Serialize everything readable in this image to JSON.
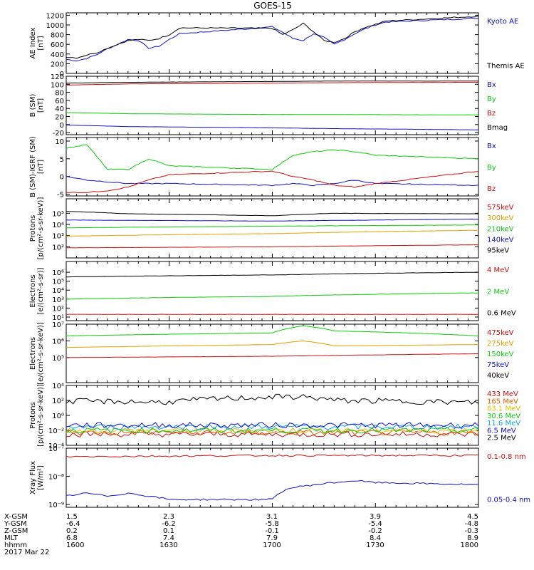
{
  "title": "GOES-15",
  "panels": [
    {
      "ylabel": [
        "AE Index",
        "[nT]"
      ],
      "scale": "linear",
      "ylim": [
        0,
        1250
      ],
      "ticks": [
        "0",
        "200",
        "400",
        "600",
        "800",
        "1000",
        "1200"
      ],
      "tick_values": [
        0,
        200,
        400,
        600,
        800,
        1000,
        1200
      ],
      "legend": [
        {
          "label": "Kyoto AE",
          "color": "#1010c8"
        },
        {
          "label": "Themis AE",
          "color": "#000000"
        }
      ]
    },
    {
      "ylabel": [
        "B (SM)",
        "[nT]"
      ],
      "scale": "linear",
      "ylim": [
        -25,
        120
      ],
      "ticks": [
        "-20",
        "0",
        "20",
        "40",
        "60",
        "80",
        "100",
        "120"
      ],
      "tick_values": [
        -20,
        0,
        20,
        40,
        60,
        80,
        100,
        120
      ],
      "legend": [
        {
          "label": "Bx",
          "color": "#1010c8"
        },
        {
          "label": "By",
          "color": "#10c810"
        },
        {
          "label": "Bz",
          "color": "#c81010"
        },
        {
          "label": "Bmag",
          "color": "#000000"
        }
      ]
    },
    {
      "ylabel": [
        "B (SM)-IGRF (SM)",
        "[nT]"
      ],
      "scale": "linear",
      "ylim": [
        -5.5,
        11
      ],
      "ticks": [
        "-5",
        "0",
        "5",
        "10"
      ],
      "tick_values": [
        -5,
        0,
        5,
        10
      ],
      "legend": [
        {
          "label": "Bx",
          "color": "#1010c8"
        },
        {
          "label": "By",
          "color": "#10c810"
        },
        {
          "label": "Bz",
          "color": "#c81010"
        }
      ]
    },
    {
      "ylabel": [
        "Protons",
        "[p/(cm²-s-sr-keV)]"
      ],
      "scale": "log",
      "ylim": [
        1,
        6.3
      ],
      "ticks": [
        "10²",
        "10³",
        "10⁴",
        "10⁵"
      ],
      "tick_values": [
        2,
        3,
        4,
        5
      ],
      "legend": [
        {
          "label": "575keV",
          "color": "#c81010"
        },
        {
          "label": "300keV",
          "color": "#e0a000"
        },
        {
          "label": "210keV",
          "color": "#10c810"
        },
        {
          "label": "140keV",
          "color": "#1010c8"
        },
        {
          "label": "95keV",
          "color": "#000000"
        }
      ]
    },
    {
      "ylabel": [
        "Electrons",
        "[e/(cm²-s-sr)]"
      ],
      "scale": "log",
      "ylim": [
        0.6,
        7.2
      ],
      "ticks": [
        "10¹",
        "10²",
        "10³",
        "10⁴",
        "10⁵",
        "10⁶"
      ],
      "tick_values": [
        1,
        2,
        3,
        4,
        5,
        6
      ],
      "legend": [
        {
          "label": "4 MeV",
          "color": "#c81010"
        },
        {
          "label": "2 MeV",
          "color": "#10c810"
        },
        {
          "label": "0.6 MeV",
          "color": "#000000"
        }
      ]
    },
    {
      "ylabel": [
        "Electrons",
        "[e/(cm²-s-sr-keV)]"
      ],
      "scale": "log",
      "ylim": [
        3.5,
        7
      ],
      "ticks": [
        "10⁵",
        "10⁶",
        "10⁷"
      ],
      "tick_values": [
        5,
        6,
        7
      ],
      "legend": [
        {
          "label": "475keV",
          "color": "#c81010"
        },
        {
          "label": "275keV",
          "color": "#e0a000"
        },
        {
          "label": "150keV",
          "color": "#10c810"
        },
        {
          "label": "75keV",
          "color": "#1010c8"
        },
        {
          "label": "40keV",
          "color": "#000000"
        }
      ]
    },
    {
      "ylabel": [
        "Protons",
        "[p/(cm²-s-sr-keV)]"
      ],
      "scale": "log",
      "ylim": [
        -4,
        4
      ],
      "ticks": [
        "10⁻⁴",
        "10⁻²",
        "10⁰",
        "10²",
        "10⁴"
      ],
      "tick_values": [
        -4,
        -2,
        0,
        2,
        4
      ],
      "legend": [
        {
          "label": "433 MeV",
          "color": "#c81010"
        },
        {
          "label": "165 MeV",
          "color": "#e06000"
        },
        {
          "label": "63.1 MeV",
          "color": "#e0c000"
        },
        {
          "label": "30.6 MeV",
          "color": "#10c810"
        },
        {
          "label": "11.6 MeV",
          "color": "#10a0e0"
        },
        {
          "label": "6.5 MeV",
          "color": "#1010c8"
        },
        {
          "label": "2.5 MeV",
          "color": "#000000"
        }
      ]
    },
    {
      "ylabel": [
        "Xray Flux",
        "[W/m²]"
      ],
      "scale": "log",
      "ylim": [
        -9.1,
        -7
      ],
      "ticks": [
        "10⁻⁹",
        "10⁻⁸",
        "10⁻⁷"
      ],
      "tick_values": [
        -9,
        -8,
        -7
      ],
      "legend": [
        {
          "label": "0.1-0.8 nm",
          "color": "#c81010"
        },
        {
          "label": "0.05-0.4 nm",
          "color": "#1010c8"
        }
      ]
    }
  ],
  "chart_data": {
    "type": "line",
    "title": "GOES-15",
    "x": {
      "label": "hhmm",
      "range": [
        1600,
        1800
      ],
      "ticks": [
        1600,
        1630,
        1700,
        1730,
        1800
      ]
    },
    "panels": [
      {
        "ylabel": "AE Index [nT]",
        "series": [
          {
            "name": "Kyoto AE",
            "x": [
              1600,
              1605,
              1610,
              1615,
              1620,
              1625,
              1630,
              1635,
              1640,
              1645,
              1650,
              1655,
              1700,
              1705,
              1710,
              1715,
              1720,
              1725,
              1730,
              1735,
              1740,
              1745,
              1750,
              1755,
              1800
            ],
            "values": [
              290,
              260,
              310,
              390,
              510,
              600,
              700,
              680,
              520,
              560,
              700,
              820,
              960,
              850,
              720,
              680,
              820,
              740,
              600,
              700,
              820,
              920,
              1000,
              1060,
              1140
            ]
          },
          {
            "name": "Themis AE",
            "x": [
              1600,
              1605,
              1610,
              1615,
              1620,
              1625,
              1630,
              1635,
              1640,
              1645,
              1650,
              1655,
              1700,
              1705,
              1710,
              1715,
              1720,
              1725,
              1730,
              1735,
              1740,
              1745,
              1750,
              1755,
              1800
            ],
            "values": [
              340,
              320,
              380,
              430,
              520,
              600,
              680,
              700,
              680,
              720,
              800,
              940,
              930,
              800,
              900,
              1030,
              860,
              680,
              640,
              720,
              860,
              950,
              1010,
              1080,
              1180
            ]
          }
        ]
      },
      {
        "ylabel": "B (SM) [nT]",
        "series": [
          {
            "name": "Bx",
            "x": [
              1600,
              1630,
              1700,
              1730,
              1800
            ],
            "values": [
              -1,
              -5,
              -8,
              -10,
              -13
            ]
          },
          {
            "name": "By",
            "x": [
              1600,
              1630,
              1700,
              1730,
              1800
            ],
            "values": [
              30,
              27,
              25,
              25,
              24
            ]
          },
          {
            "name": "Bz",
            "x": [
              1600,
              1630,
              1700,
              1730,
              1800
            ],
            "values": [
              98,
              101,
              103,
              104,
              105
            ]
          },
          {
            "name": "Bmag",
            "x": [
              1600,
              1630,
              1700,
              1730,
              1800
            ],
            "values": [
              103,
              105,
              107,
              108,
              108
            ]
          }
        ]
      },
      {
        "ylabel": "B (SM)-IGRF (SM) [nT]",
        "series": [
          {
            "name": "Bx",
            "x": [
              1600,
              1610,
              1620,
              1630,
              1640,
              1650,
              1700,
              1710,
              1720,
              1730,
              1740,
              1750,
              1800
            ],
            "values": [
              0,
              -1,
              -1.5,
              -2,
              -2,
              -2,
              -2.5,
              -2,
              -2.5,
              -2,
              -1,
              -2,
              -2.5
            ]
          },
          {
            "name": "By",
            "x": [
              1600,
              1610,
              1620,
              1630,
              1640,
              1650,
              1700,
              1710,
              1720,
              1730,
              1740,
              1750,
              1800
            ],
            "values": [
              8,
              9,
              2,
              2,
              5,
              3,
              2,
              6,
              7,
              7.5,
              7,
              6,
              5
            ]
          },
          {
            "name": "Bz",
            "x": [
              1600,
              1610,
              1620,
              1630,
              1640,
              1650,
              1700,
              1710,
              1720,
              1730,
              1740,
              1750,
              1800
            ],
            "values": [
              -4.5,
              -4.5,
              -4,
              -3,
              -1,
              0.5,
              1.5,
              0,
              -1,
              -2.5,
              -3,
              -2,
              1.5
            ]
          }
        ]
      },
      {
        "ylabel": "Protons [p/(cm2-s-sr-keV)]",
        "series": [
          {
            "name": "575keV",
            "x": [
              1600,
              1700,
              1800
            ],
            "values": [
              80,
              100,
              150
            ]
          },
          {
            "name": "300keV",
            "x": [
              1600,
              1700,
              1800
            ],
            "values": [
              900,
              1500,
              3000
            ]
          },
          {
            "name": "210keV",
            "x": [
              1600,
              1700,
              1800
            ],
            "values": [
              5000,
              7000,
              9000
            ]
          },
          {
            "name": "140keV",
            "x": [
              1600,
              1700,
              1800
            ],
            "values": [
              25000,
              20000,
              30000
            ]
          },
          {
            "name": "95keV",
            "x": [
              1600,
              1630,
              1700,
              1730,
              1800
            ],
            "values": [
              150000,
              90000,
              60000,
              100000,
              90000
            ]
          }
        ]
      },
      {
        "ylabel": "Electrons [e/(cm2-s-sr)]",
        "series": [
          {
            "name": "4 MeV",
            "x": [
              1600,
              1700,
              1800
            ],
            "values": [
              20,
              20,
              20
            ]
          },
          {
            "name": "2 MeV",
            "x": [
              1600,
              1700,
              1800
            ],
            "values": [
              1000,
              2000,
              5000
            ]
          },
          {
            "name": "0.6 MeV",
            "x": [
              1600,
              1700,
              1800
            ],
            "values": [
              300000,
              500000,
              1000000
            ]
          }
        ]
      },
      {
        "ylabel": "Electrons [e/(cm2-s-sr-keV)]",
        "series": [
          {
            "name": "475keV",
            "x": [
              1600,
              1700,
              1800
            ],
            "values": [
              100000,
              120000,
              170000
            ]
          },
          {
            "name": "275keV",
            "x": [
              1600,
              1700,
              1715,
              1730,
              1800
            ],
            "values": [
              400000,
              600000,
              1000000,
              500000,
              600000
            ]
          },
          {
            "name": "150keV",
            "x": [
              1600,
              1700,
              1715,
              1730,
              1800
            ],
            "values": [
              2000000,
              3000000,
              8000000,
              4000000,
              2000000
            ]
          }
        ]
      },
      {
        "ylabel": "Protons [p/(cm2-s-sr-keV)]",
        "series": [
          {
            "name": "433 MeV",
            "x": [
              1600,
              1700,
              1800
            ],
            "values": [
              0.003,
              0.003,
              0.003
            ]
          },
          {
            "name": "165 MeV",
            "x": [
              1600,
              1700,
              1800
            ],
            "values": [
              0.005,
              0.005,
              0.005
            ]
          },
          {
            "name": "63.1 MeV",
            "x": [
              1600,
              1700,
              1800
            ],
            "values": [
              0.01,
              0.01,
              0.01
            ]
          },
          {
            "name": "30.6 MeV",
            "x": [
              1600,
              1700,
              1800
            ],
            "values": [
              0.01,
              0.01,
              0.01
            ]
          },
          {
            "name": "11.6 MeV",
            "x": [
              1600,
              1700,
              1800
            ],
            "values": [
              0.03,
              0.03,
              0.03
            ]
          },
          {
            "name": "6.5 MeV",
            "x": [
              1600,
              1700,
              1800
            ],
            "values": [
              0.05,
              0.05,
              0.05
            ]
          },
          {
            "name": "2.5 MeV",
            "x": [
              1600,
              1650,
              1705,
              1715,
              1730,
              1800
            ],
            "values": [
              80,
              60,
              300,
              300,
              100,
              50
            ]
          }
        ]
      },
      {
        "ylabel": "Xray Flux [W/m2]",
        "series": [
          {
            "name": "0.1-0.8 nm",
            "x": [
              1600,
              1700,
              1800
            ],
            "values": [
              5e-08,
              5.5e-08,
              5.5e-08
            ]
          },
          {
            "name": "0.05-0.4 nm",
            "x": [
              1600,
              1610,
              1620,
              1630,
              1640,
              1650,
              1700,
              1705,
              1710,
              1720,
              1730,
              1740,
              1750,
              1800
            ],
            "values": [
              2e-09,
              2.5e-09,
              2e-09,
              2.5e-09,
              2e-09,
              1.5e-09,
              1.5e-09,
              3e-09,
              4e-09,
              5e-09,
              6e-09,
              7e-09,
              6e-09,
              5e-09
            ]
          }
        ]
      }
    ]
  },
  "footer": {
    "row_labels": [
      "X-GSM",
      "Y-GSM",
      "Z-GSM",
      "MLT",
      "hhmm"
    ],
    "columns": [
      [
        "1.5",
        "-6.4",
        "0.2",
        "6.8",
        "1600"
      ],
      [
        "2.3",
        "-6.2",
        "0.1",
        "7.4",
        "1630"
      ],
      [
        "3.1",
        "-5.8",
        "-0.1",
        "7.9",
        "1700"
      ],
      [
        "3.9",
        "-5.4",
        "-0.2",
        "8.4",
        "1730"
      ],
      [
        "4.5",
        "-4.8",
        "-0.3",
        "8.9",
        "1800"
      ]
    ],
    "date": "2017 Mar 22"
  }
}
